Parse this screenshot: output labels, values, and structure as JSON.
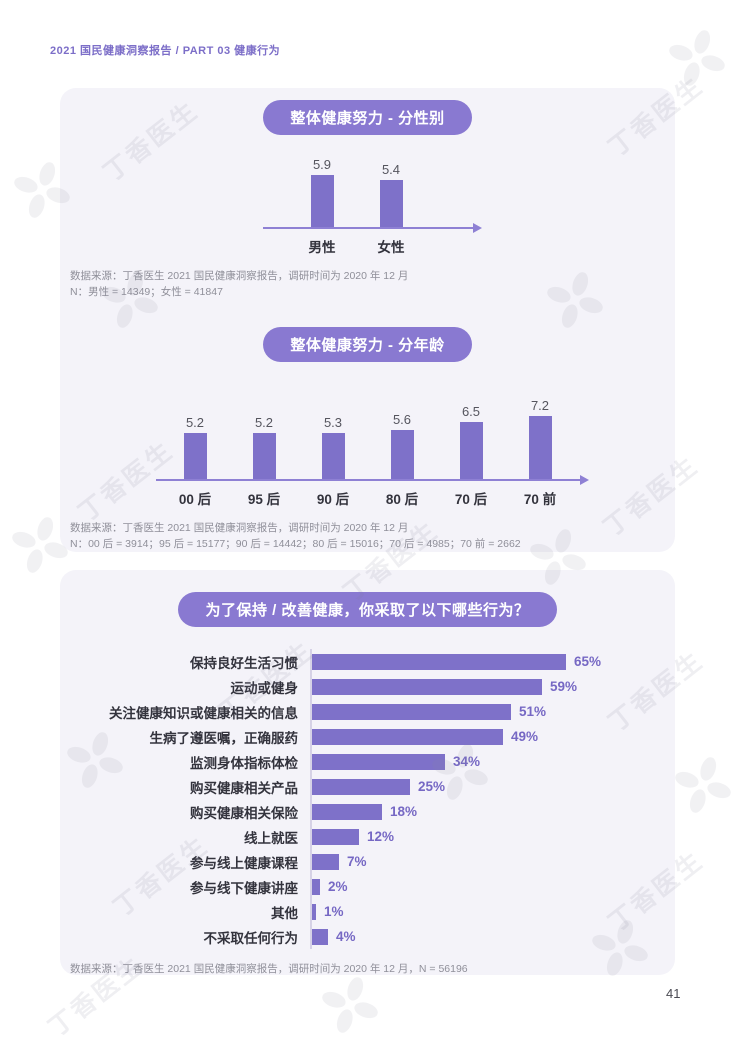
{
  "page": {
    "header": "2021 国民健康洞察报告 / PART 03 健康行为",
    "page_number": "41",
    "watermark_text": "丁香医生"
  },
  "colors": {
    "accent_purple": "#7E71C9",
    "pill_purple": "#8979D1",
    "axis_purple": "#8E80D4",
    "panel_background": "#F4F3F9",
    "percent_label_purple": "#7668C4",
    "category_text": "#33333d",
    "source_text": "#8F8F99",
    "header_purple": "#7C6EC8"
  },
  "chart_data": [
    {
      "type": "bar",
      "orientation": "vertical",
      "title": "整体健康努力 - 分性别",
      "categories": [
        "男性",
        "女性"
      ],
      "values": [
        5.9,
        5.4
      ],
      "ylim": [
        0,
        8
      ],
      "grid": false,
      "source": [
        "数据来源：丁香医生 2021 国民健康洞察报告，调研时间为 2020 年 12 月",
        "N：男性 = 14349；女性 = 41847"
      ]
    },
    {
      "type": "bar",
      "orientation": "vertical",
      "title": "整体健康努力 - 分年龄",
      "categories": [
        "00 后",
        "95 后",
        "90 后",
        "80 后",
        "70 后",
        "70 前"
      ],
      "values": [
        5.2,
        5.2,
        5.3,
        5.6,
        6.5,
        7.2
      ],
      "ylim": [
        0,
        8
      ],
      "grid": false,
      "source": [
        "数据来源：丁香医生 2021 国民健康洞察报告，调研时间为 2020 年 12 月",
        "N：00 后 = 3914；95 后 = 15177；90 后 = 14442；80 后 = 15016；70 后 = 4985；70 前 = 2662"
      ]
    },
    {
      "type": "bar",
      "orientation": "horizontal",
      "title": "为了保持 / 改善健康，你采取了以下哪些行为？",
      "categories": [
        "保持良好生活习惯",
        "运动或健身",
        "关注健康知识或健康相关的信息",
        "生病了遵医嘱，正确服药",
        "监测身体指标体检",
        "购买健康相关产品",
        "购买健康相关保险",
        "线上就医",
        "参与线上健康课程",
        "参与线下健康讲座",
        "其他",
        "不采取任何行为"
      ],
      "values": [
        65,
        59,
        51,
        49,
        34,
        25,
        18,
        12,
        7,
        2,
        1,
        4
      ],
      "unit": "%",
      "xlim": [
        0,
        100
      ],
      "grid": false,
      "source": [
        "数据来源：丁香医生 2021 国民健康洞察报告，调研时间为 2020 年 12 月，N = 56196"
      ]
    }
  ]
}
